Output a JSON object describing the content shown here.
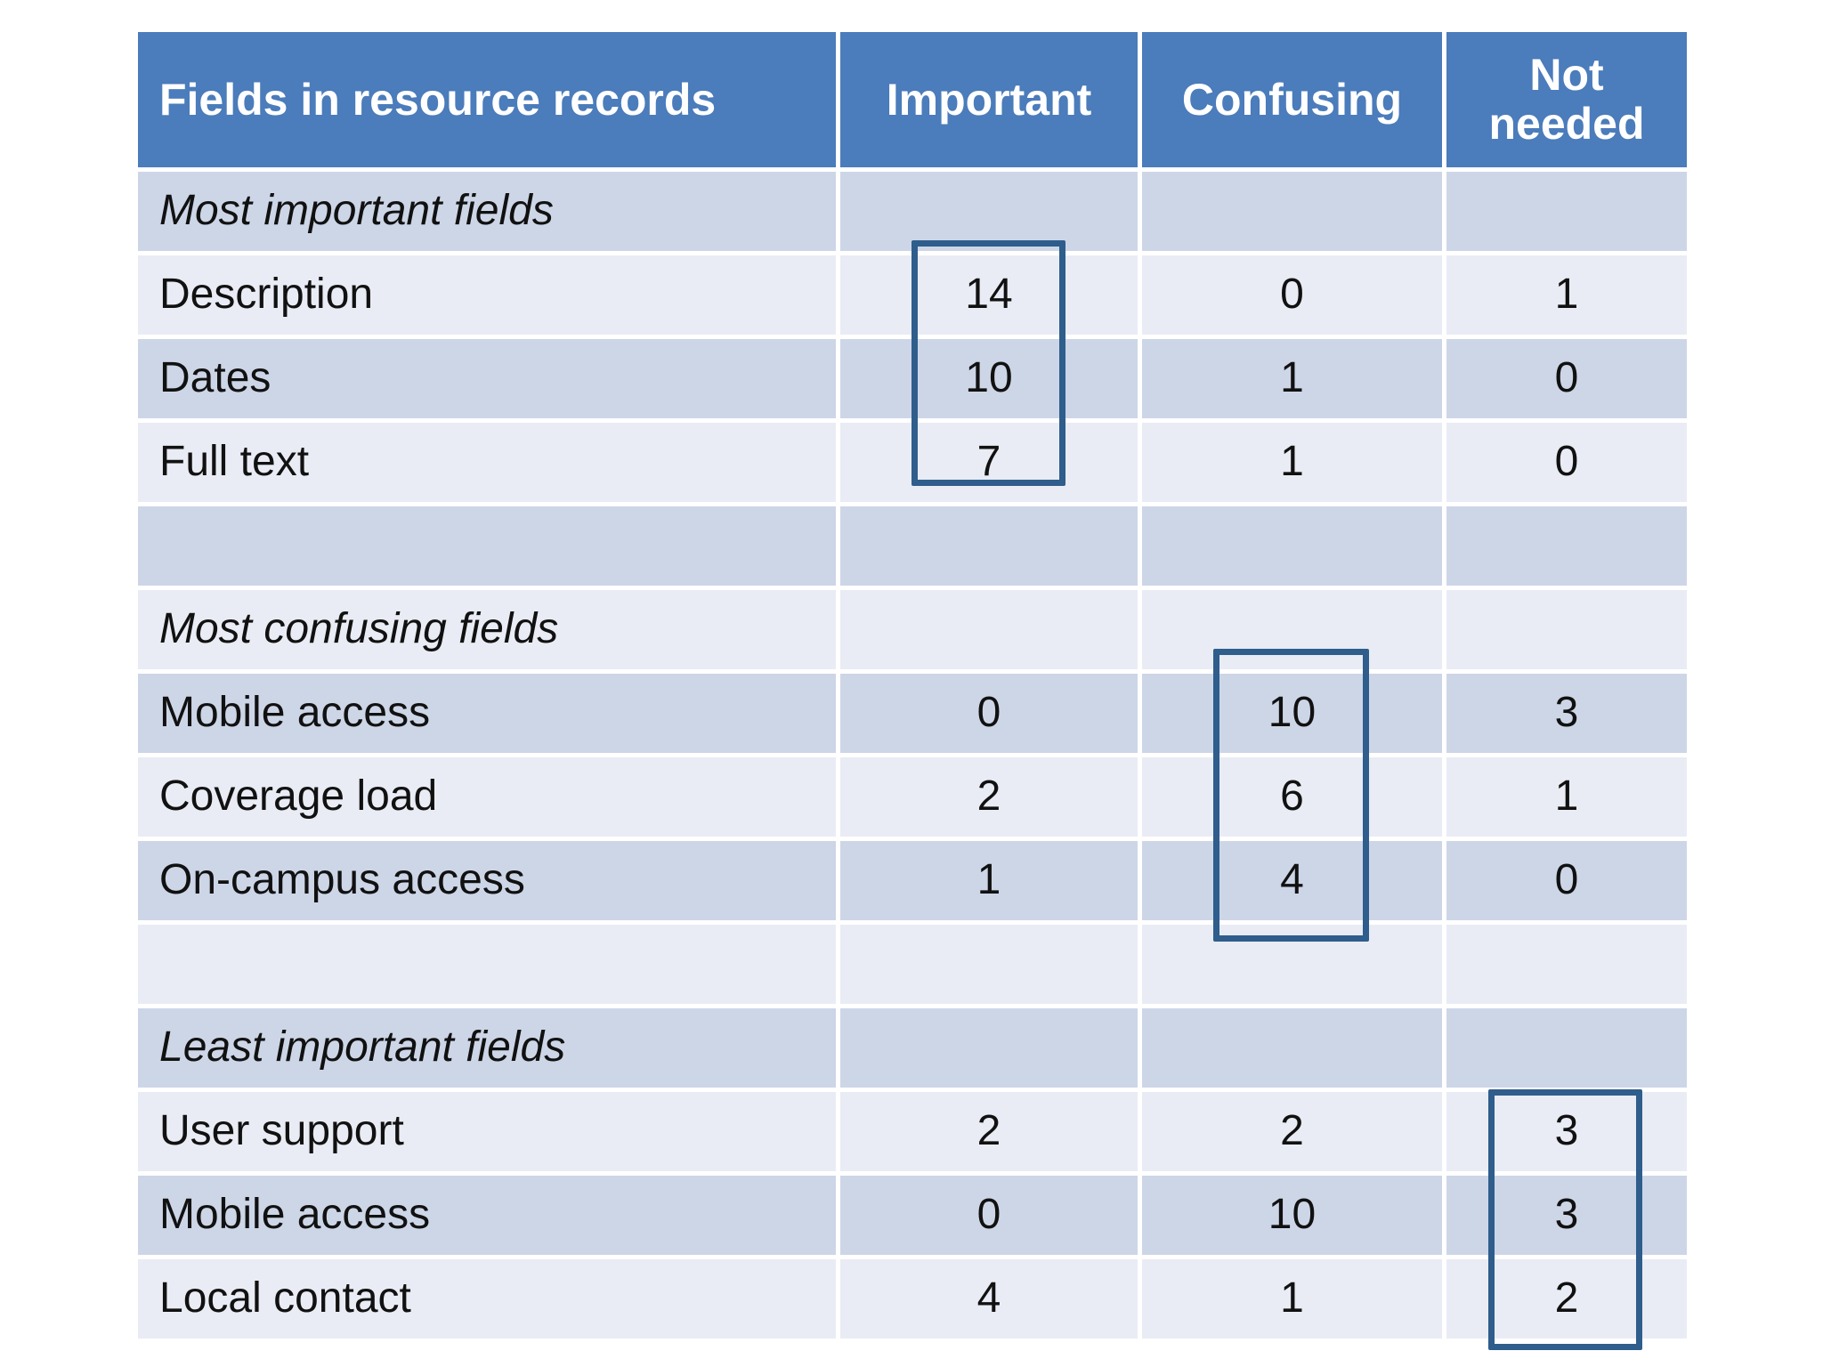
{
  "colors": {
    "header_bg": "#4b7cbb",
    "header_text": "#ffffff",
    "band_dark": "#cdd6e7",
    "band_light": "#e9ecf4",
    "gap": "#ffffff",
    "text": "#111111",
    "highlight_border": "#2f5d8c"
  },
  "table": {
    "header": {
      "col1": "Fields in resource records",
      "col2": "Important",
      "col3": "Confusing",
      "col4": "Not needed"
    },
    "rows": [
      {
        "label": "Most important fields",
        "c1": "",
        "c2": "",
        "c3": ""
      },
      {
        "label": "Description",
        "c1": "14",
        "c2": "0",
        "c3": "1"
      },
      {
        "label": "Dates",
        "c1": "10",
        "c2": "1",
        "c3": "0"
      },
      {
        "label": "Full text",
        "c1": "7",
        "c2": "1",
        "c3": "0"
      },
      {
        "label": "",
        "c1": "",
        "c2": "",
        "c3": ""
      },
      {
        "label": "Most confusing fields",
        "c1": "",
        "c2": "",
        "c3": ""
      },
      {
        "label": "Mobile access",
        "c1": "0",
        "c2": "10",
        "c3": "3"
      },
      {
        "label": "Coverage load",
        "c1": "2",
        "c2": "6",
        "c3": "1"
      },
      {
        "label": "On-campus access",
        "c1": "1",
        "c2": "4",
        "c3": "0"
      },
      {
        "label": "",
        "c1": "",
        "c2": "",
        "c3": ""
      },
      {
        "label": "Least important fields",
        "c1": "",
        "c2": "",
        "c3": ""
      },
      {
        "label": "User support",
        "c1": "2",
        "c2": "2",
        "c3": "3"
      },
      {
        "label": "Mobile access",
        "c1": "0",
        "c2": "10",
        "c3": "3"
      },
      {
        "label": "Local contact",
        "c1": "4",
        "c2": "1",
        "c3": "2"
      }
    ]
  },
  "chart_data": {
    "type": "table",
    "columns": [
      "Fields in resource records",
      "Important",
      "Confusing",
      "Not needed"
    ],
    "sections": [
      {
        "label": "Most important fields",
        "highlighted_column": "Important",
        "rows": [
          {
            "field": "Description",
            "important": 14,
            "confusing": 0,
            "not_needed": 1
          },
          {
            "field": "Dates",
            "important": 10,
            "confusing": 1,
            "not_needed": 0
          },
          {
            "field": "Full text",
            "important": 7,
            "confusing": 1,
            "not_needed": 0
          }
        ]
      },
      {
        "label": "Most confusing fields",
        "highlighted_column": "Confusing",
        "rows": [
          {
            "field": "Mobile access",
            "important": 0,
            "confusing": 10,
            "not_needed": 3
          },
          {
            "field": "Coverage load",
            "important": 2,
            "confusing": 6,
            "not_needed": 1
          },
          {
            "field": "On-campus access",
            "important": 1,
            "confusing": 4,
            "not_needed": 0
          }
        ]
      },
      {
        "label": "Least important fields",
        "highlighted_column": "Not needed",
        "rows": [
          {
            "field": "User support",
            "important": 2,
            "confusing": 2,
            "not_needed": 3
          },
          {
            "field": "Mobile access",
            "important": 0,
            "confusing": 10,
            "not_needed": 3
          },
          {
            "field": "Local contact",
            "important": 4,
            "confusing": 1,
            "not_needed": 2
          }
        ]
      }
    ]
  }
}
